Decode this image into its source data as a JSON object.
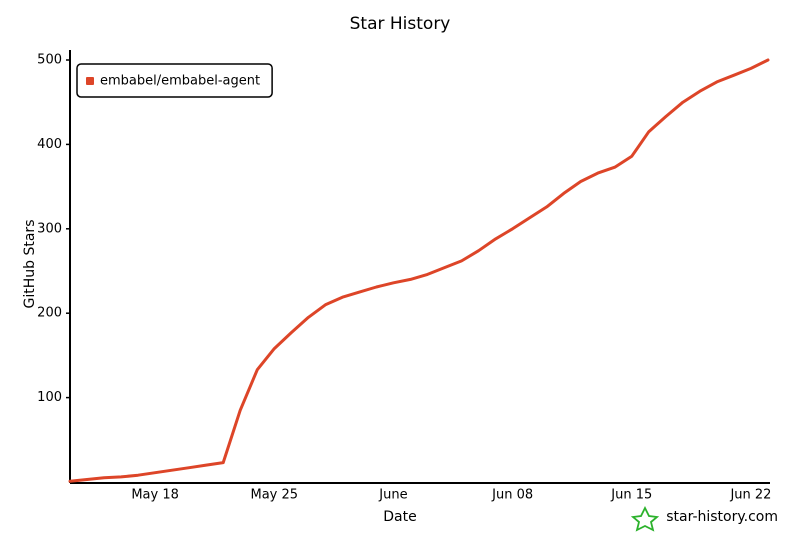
{
  "chart_data": {
    "type": "line",
    "title": "Star History",
    "x_label": "Date",
    "y_label": "GitHub Stars",
    "watermark": "star-history.com",
    "categories": [
      null,
      null,
      null,
      null,
      null,
      "May 18",
      null,
      null,
      null,
      null,
      null,
      null,
      "May 25",
      null,
      null,
      null,
      null,
      null,
      null,
      "June",
      null,
      null,
      null,
      null,
      null,
      null,
      "Jun 08",
      null,
      null,
      null,
      null,
      null,
      null,
      "Jun 15",
      null,
      null,
      null,
      null,
      null,
      null,
      "Jun 22",
      null
    ],
    "series": [
      {
        "name": "embabel/embabel-agent",
        "color": "#dd4528",
        "values": [
          1,
          3,
          5,
          6,
          8,
          11,
          14,
          17,
          20,
          23,
          85,
          133,
          158,
          177,
          195,
          210,
          219,
          225,
          231,
          236,
          240,
          246,
          254,
          262,
          274,
          288,
          300,
          313,
          326,
          342,
          356,
          366,
          373,
          386,
          415,
          433,
          450,
          463,
          474,
          482,
          490,
          500
        ]
      }
    ],
    "ylim": [
      0,
      500
    ],
    "yticks": [
      100,
      200,
      300,
      400,
      500
    ],
    "grid": false,
    "legend": "top-left"
  }
}
